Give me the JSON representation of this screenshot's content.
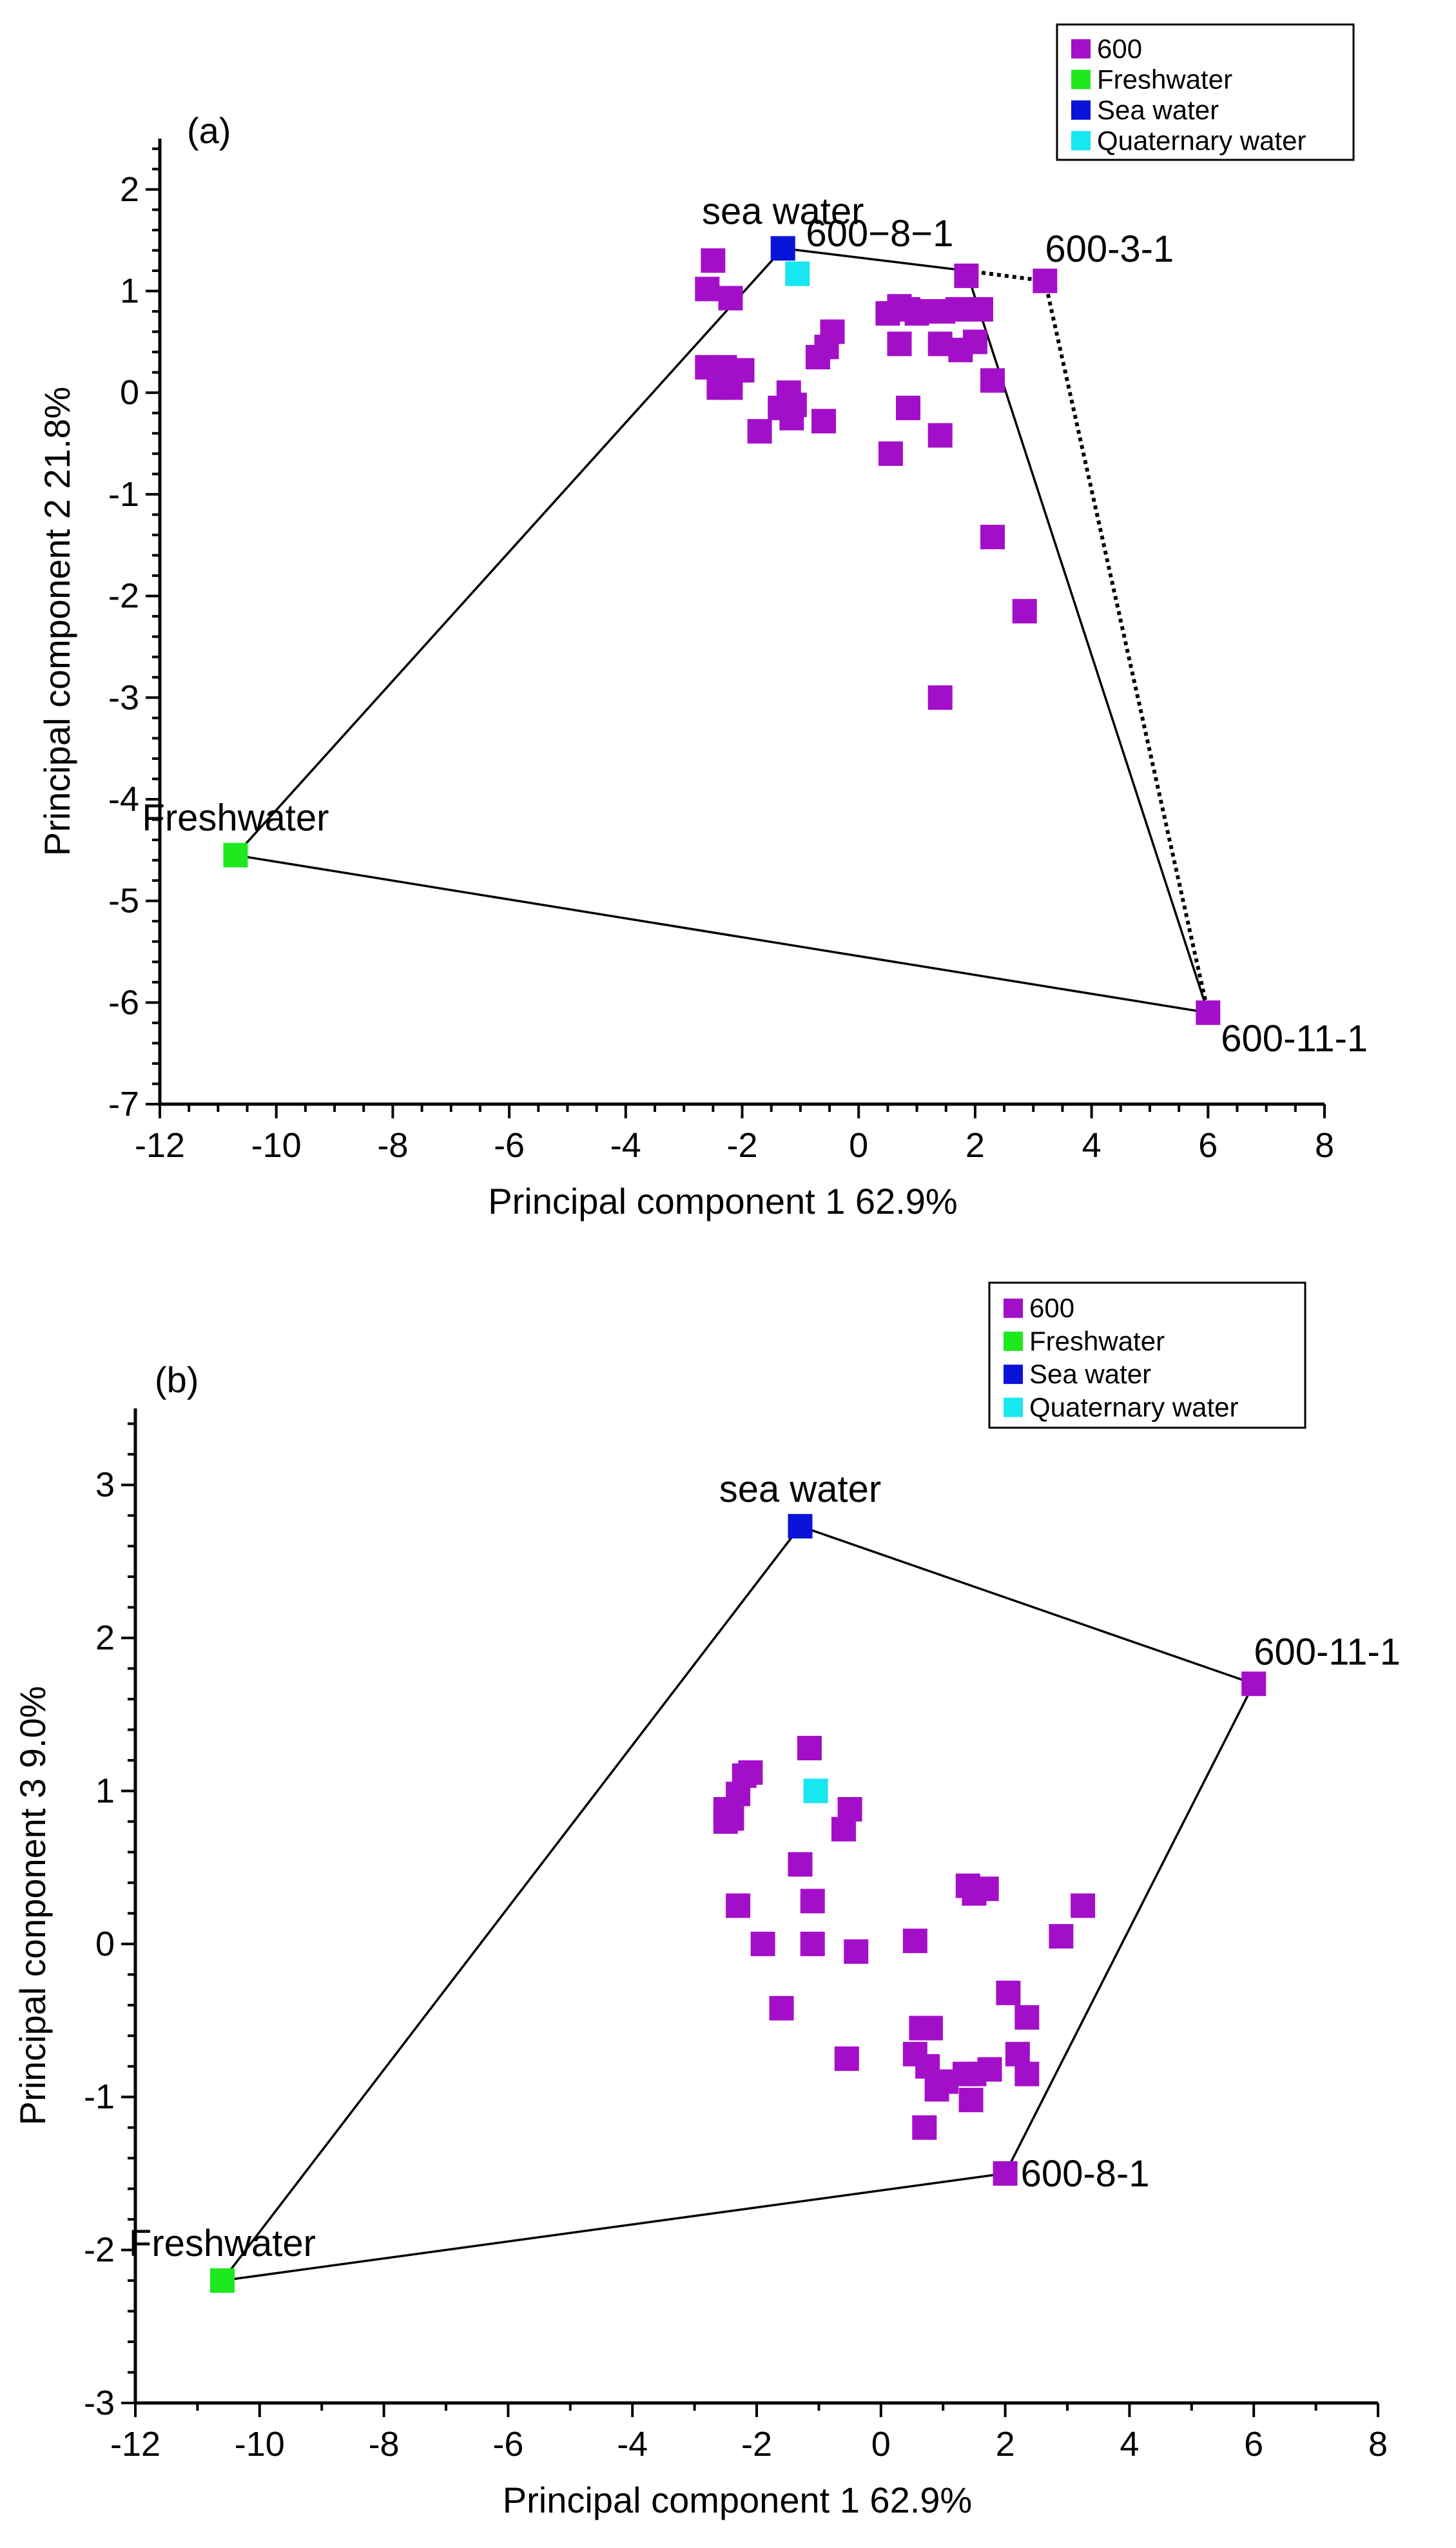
{
  "colors": {
    "s600": "#a30fc8",
    "freshwater": "#1ee81e",
    "seawater": "#0a14d8",
    "quaternary": "#18e6f0"
  },
  "legend": [
    {
      "key": "s600",
      "label": "600"
    },
    {
      "key": "freshwater",
      "label": "Freshwater"
    },
    {
      "key": "seawater",
      "label": "Sea water"
    },
    {
      "key": "quaternary",
      "label": "Quaternary water"
    }
  ],
  "chart_data": [
    {
      "type": "scatter",
      "panel_label": "(a)",
      "xlabel": "Principal component 1  62.9%",
      "ylabel": "Principal component  2  21.8%",
      "xlim": [
        -12,
        8
      ],
      "ylim": [
        -7,
        2.5
      ],
      "xticks": [
        -12,
        -10,
        -8,
        -6,
        -4,
        -2,
        0,
        2,
        4,
        6,
        8
      ],
      "xtick_labels": [
        "-12",
        "-10",
        "-8",
        "-6",
        "-4",
        "-2",
        "0",
        "2",
        "4",
        "6",
        "8"
      ],
      "yticks": [
        -7,
        -6,
        -5,
        -4,
        -3,
        -2,
        -1,
        0,
        1,
        2
      ],
      "ytick_labels": [
        "-7",
        "-6",
        "-5",
        "-4",
        "-3",
        "-2",
        "-1",
        "0",
        "1",
        "2"
      ],
      "series": [
        {
          "name": "600",
          "color_key": "s600",
          "points": [
            [
              -2.5,
              1.3
            ],
            [
              -2.6,
              1.02
            ],
            [
              -2.2,
              0.93
            ],
            [
              -2.6,
              0.25
            ],
            [
              -2.4,
              0.05
            ],
            [
              -2.3,
              0.25
            ],
            [
              -2.2,
              0.05
            ],
            [
              -2.0,
              0.22
            ],
            [
              -1.7,
              -0.38
            ],
            [
              -1.35,
              -0.15
            ],
            [
              -1.2,
              0.0
            ],
            [
              -1.15,
              -0.25
            ],
            [
              -1.1,
              -0.12
            ],
            [
              -0.7,
              0.35
            ],
            [
              -0.55,
              0.45
            ],
            [
              -0.45,
              0.6
            ],
            [
              -0.6,
              -0.28
            ],
            [
              0.5,
              0.78
            ],
            [
              0.7,
              0.85
            ],
            [
              0.85,
              0.82
            ],
            [
              1.0,
              0.78
            ],
            [
              1.2,
              0.8
            ],
            [
              1.45,
              0.8
            ],
            [
              1.7,
              0.82
            ],
            [
              1.85,
              1.15
            ],
            [
              2.1,
              0.82
            ],
            [
              0.7,
              0.48
            ],
            [
              1.4,
              0.48
            ],
            [
              1.75,
              0.42
            ],
            [
              2.0,
              0.5
            ],
            [
              2.3,
              0.12
            ],
            [
              0.85,
              -0.15
            ],
            [
              0.55,
              -0.6
            ],
            [
              1.4,
              -0.42
            ],
            [
              2.3,
              -1.42
            ],
            [
              2.85,
              -2.15
            ],
            [
              1.4,
              -3.0
            ],
            [
              3.2,
              1.1
            ],
            [
              6.0,
              -6.1
            ]
          ]
        },
        {
          "name": "Freshwater",
          "color_key": "freshwater",
          "points": [
            [
              -10.7,
              -4.55
            ]
          ]
        },
        {
          "name": "Sea water",
          "color_key": "seawater",
          "points": [
            [
              -1.3,
              1.42
            ]
          ]
        },
        {
          "name": "Quaternary water",
          "color_key": "quaternary",
          "points": [
            [
              -1.05,
              1.17
            ]
          ]
        }
      ],
      "hull_solid": [
        [
          -10.7,
          -4.55
        ],
        [
          -1.3,
          1.42
        ],
        [
          1.85,
          1.2
        ],
        [
          6.0,
          -6.1
        ],
        [
          -10.7,
          -4.55
        ]
      ],
      "hull_dotted": [
        [
          1.85,
          1.2
        ],
        [
          3.2,
          1.1
        ],
        [
          6.0,
          -6.1
        ]
      ],
      "annotations": [
        {
          "text": "sea water",
          "x": -1.3,
          "y": 1.42,
          "anchor": "above"
        },
        {
          "text": "600−8−1",
          "x": 1.85,
          "y": 1.2,
          "anchor": "above-left"
        },
        {
          "text": "600-3-1",
          "x": 3.2,
          "y": 1.1,
          "anchor": "above-right"
        },
        {
          "text": "Freshwater",
          "x": -10.7,
          "y": -4.55,
          "anchor": "above"
        },
        {
          "text": "600-11-1",
          "x": 6.0,
          "y": -6.1,
          "anchor": "below-right"
        }
      ]
    },
    {
      "type": "scatter",
      "panel_label": "(b)",
      "xlabel": "Principal component 1  62.9%",
      "ylabel": "Principal conponent 3  9.0%",
      "xlim": [
        -12,
        8
      ],
      "ylim": [
        -3,
        3.5
      ],
      "xticks": [
        -12,
        -10,
        -8,
        -6,
        -4,
        -2,
        0,
        2,
        4,
        6,
        8
      ],
      "xtick_labels": [
        "-12",
        "-10",
        "-8",
        "-6",
        "-4",
        "-2",
        "0",
        "2",
        "4",
        "6",
        "8"
      ],
      "yticks": [
        -3,
        -2,
        -1,
        0,
        1,
        2,
        3
      ],
      "ytick_labels": [
        "-3",
        "-2",
        "-1",
        "0",
        "1",
        "2",
        "3"
      ],
      "series": [
        {
          "name": "600",
          "color_key": "s600",
          "points": [
            [
              -2.5,
              0.88
            ],
            [
              -2.5,
              0.8
            ],
            [
              -2.4,
              0.82
            ],
            [
              -2.3,
              0.98
            ],
            [
              -2.2,
              1.1
            ],
            [
              -2.1,
              1.12
            ],
            [
              -2.3,
              0.25
            ],
            [
              -1.9,
              0.0
            ],
            [
              -1.6,
              -0.42
            ],
            [
              -1.15,
              1.28
            ],
            [
              -1.3,
              0.52
            ],
            [
              -1.1,
              0.28
            ],
            [
              -1.1,
              0.0
            ],
            [
              -0.6,
              0.75
            ],
            [
              -0.5,
              0.88
            ],
            [
              -0.4,
              -0.05
            ],
            [
              -0.55,
              -0.75
            ],
            [
              0.55,
              0.02
            ],
            [
              1.4,
              0.38
            ],
            [
              1.5,
              0.33
            ],
            [
              1.7,
              0.36
            ],
            [
              2.9,
              0.05
            ],
            [
              3.25,
              0.25
            ],
            [
              0.55,
              -0.72
            ],
            [
              0.65,
              -0.55
            ],
            [
              0.8,
              -0.55
            ],
            [
              0.75,
              -0.8
            ],
            [
              0.9,
              -0.95
            ],
            [
              1.05,
              -0.9
            ],
            [
              1.35,
              -0.85
            ],
            [
              1.5,
              -0.85
            ],
            [
              1.75,
              -0.82
            ],
            [
              1.45,
              -1.02
            ],
            [
              2.05,
              -0.32
            ],
            [
              2.35,
              -0.48
            ],
            [
              2.2,
              -0.72
            ],
            [
              2.35,
              -0.85
            ],
            [
              0.7,
              -1.2
            ],
            [
              2.0,
              -1.5
            ],
            [
              6.0,
              1.7
            ]
          ]
        },
        {
          "name": "Freshwater",
          "color_key": "freshwater",
          "points": [
            [
              -10.6,
              -2.2
            ]
          ]
        },
        {
          "name": "Sea water",
          "color_key": "seawater",
          "points": [
            [
              -1.3,
              2.73
            ]
          ]
        },
        {
          "name": "Quaternary water",
          "color_key": "quaternary",
          "points": [
            [
              -1.05,
              1.0
            ]
          ]
        }
      ],
      "hull_solid": [
        [
          -10.6,
          -2.2
        ],
        [
          -1.3,
          2.73
        ],
        [
          6.0,
          1.7
        ],
        [
          2.0,
          -1.5
        ],
        [
          -10.6,
          -2.2
        ]
      ],
      "hull_dotted": [],
      "annotations": [
        {
          "text": "sea water",
          "x": -1.3,
          "y": 2.73,
          "anchor": "above"
        },
        {
          "text": "600-11-1",
          "x": 6.0,
          "y": 1.7,
          "anchor": "above-right"
        },
        {
          "text": "600-8-1",
          "x": 2.0,
          "y": -1.5,
          "anchor": "right"
        },
        {
          "text": "Freshwater",
          "x": -10.6,
          "y": -2.2,
          "anchor": "above"
        }
      ]
    }
  ]
}
